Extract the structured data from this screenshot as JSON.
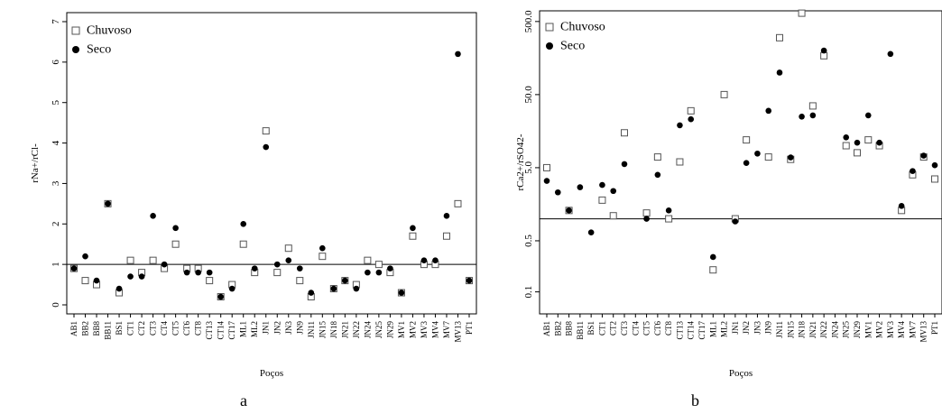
{
  "chart_data": [
    {
      "type": "scatter",
      "panel_label": "a",
      "xlabel": "Poços",
      "ylabel": "rNa+/rCl-",
      "ylim": [
        0,
        7
      ],
      "y_ticks": [
        "0",
        "1",
        "2",
        "3",
        "4",
        "5",
        "6",
        "7"
      ],
      "y_scale": "linear",
      "reference_line": 1,
      "legend_position": "top-left",
      "categories": [
        "AB1",
        "BB2",
        "BB8",
        "BB11",
        "BS1",
        "CT1",
        "CT2",
        "CT3",
        "CT4",
        "CT5",
        "CT6",
        "CT8",
        "CT13",
        "CT14",
        "CT17",
        "ML1",
        "ML2",
        "JN1",
        "JN2",
        "JN3",
        "JN9",
        "JN11",
        "JN15",
        "JN18",
        "JN21",
        "JN22",
        "JN24",
        "JN25",
        "JN29",
        "MV1",
        "MV2",
        "MV3",
        "MV4",
        "MV7",
        "MV13",
        "PT1"
      ],
      "series": [
        {
          "name": "Chuvoso",
          "marker": "open-square",
          "values": [
            0.9,
            0.6,
            0.5,
            2.5,
            0.3,
            1.1,
            0.8,
            1.1,
            0.9,
            1.5,
            0.9,
            0.9,
            0.6,
            0.2,
            0.5,
            1.5,
            0.8,
            4.3,
            0.8,
            1.4,
            0.6,
            0.2,
            1.2,
            0.4,
            0.6,
            0.5,
            1.1,
            1.0,
            0.8,
            0.3,
            1.7,
            1.0,
            1.0,
            1.7,
            2.5,
            0.6
          ]
        },
        {
          "name": "Seco",
          "marker": "filled-circle",
          "values": [
            0.9,
            1.2,
            0.6,
            2.5,
            0.4,
            0.7,
            0.7,
            2.2,
            1.0,
            1.9,
            0.8,
            0.8,
            0.8,
            0.2,
            0.4,
            2.0,
            0.9,
            3.9,
            1.0,
            1.1,
            0.9,
            0.3,
            1.4,
            0.4,
            0.6,
            0.4,
            0.8,
            0.8,
            0.9,
            0.3,
            1.9,
            1.1,
            1.1,
            2.2,
            6.2,
            0.6
          ]
        }
      ]
    },
    {
      "type": "scatter",
      "panel_label": "b",
      "xlabel": "Poços",
      "ylabel": "rCa2+/rSO42-",
      "ylim": [
        0.05,
        700
      ],
      "y_ticks": [
        "0.1",
        "0.5",
        "5.0",
        "50.0",
        "500.0"
      ],
      "y_scale": "log",
      "reference_line": 1,
      "legend_position": "top-left",
      "categories": [
        "AB1",
        "BB2",
        "BB8",
        "BB11",
        "BS1",
        "CT1",
        "CT2",
        "CT3",
        "CT4",
        "CT5",
        "CT6",
        "CT8",
        "CT13",
        "CT14",
        "CT17",
        "ML1",
        "ML2",
        "JN1",
        "JN2",
        "JN3",
        "JN9",
        "JN11",
        "JN15",
        "JN18",
        "JN21",
        "JN22",
        "JN24",
        "JN25",
        "JN29",
        "MV1",
        "MV2",
        "MV3",
        "MV4",
        "MV7",
        "MV13",
        "PT1"
      ],
      "series": [
        {
          "name": "Chuvoso",
          "marker": "open-square",
          "values": [
            5.0,
            null,
            1.3,
            null,
            null,
            1.8,
            1.1,
            15,
            null,
            1.2,
            7,
            1.0,
            6,
            30,
            null,
            0.2,
            50,
            1.0,
            12,
            null,
            7,
            300,
            6.5,
            650,
            35,
            170,
            null,
            10,
            8,
            12,
            10,
            null,
            1.3,
            4,
            7,
            3.5
          ]
        },
        {
          "name": "Seco",
          "marker": "filled-circle",
          "values": [
            3.3,
            2.3,
            1.3,
            2.7,
            0.65,
            2.9,
            2.4,
            5.6,
            null,
            1.0,
            4.0,
            1.3,
            19,
            23,
            null,
            0.3,
            null,
            0.92,
            5.8,
            7.8,
            30,
            100,
            6.9,
            25,
            26,
            200,
            null,
            13,
            11,
            26,
            11,
            180,
            1.5,
            4.5,
            7.3,
            5.4
          ]
        }
      ]
    }
  ]
}
